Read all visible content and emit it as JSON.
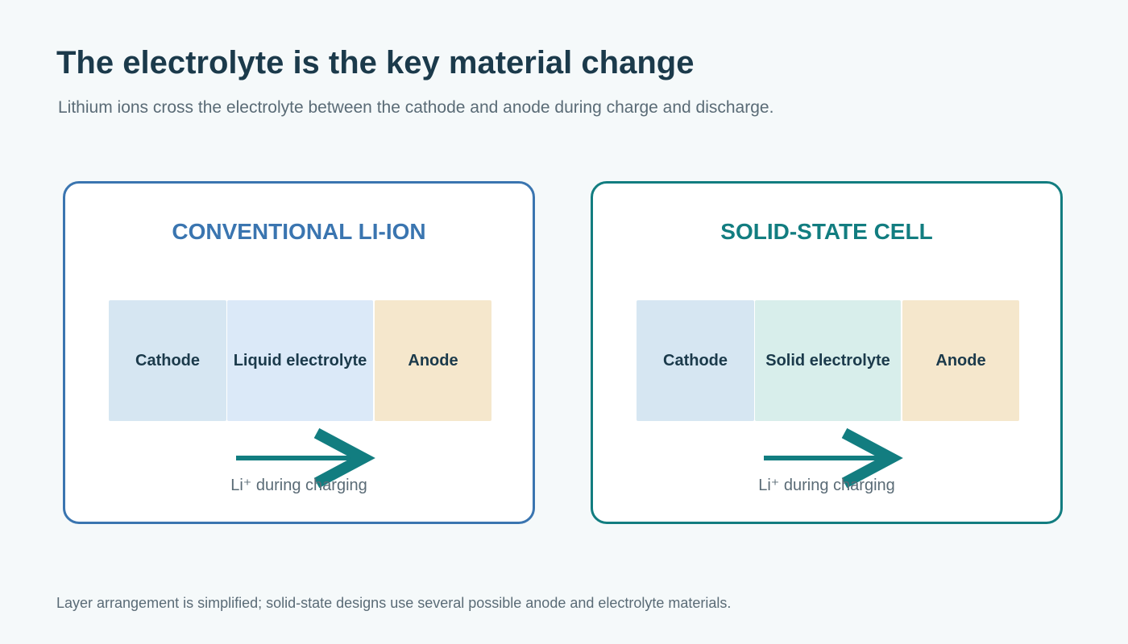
{
  "header": {
    "title": "The electrolyte is the key material change",
    "subtitle": "Lithium ions cross the electrolyte between the cathode and anode during charge and discharge."
  },
  "panels": [
    {
      "title": "CONVENTIONAL LI-ION",
      "layers": [
        "Cathode",
        "Liquid electrolyte",
        "Anode"
      ],
      "arrow_label": "Li⁺ during charging"
    },
    {
      "title": "SOLID-STATE CELL",
      "layers": [
        "Cathode",
        "Solid electrolyte",
        "Anode"
      ],
      "arrow_label": "Li⁺ during charging"
    }
  ],
  "footnote": "Layer arrangement is simplified; solid-state designs use several possible anode and electrolyte materials."
}
